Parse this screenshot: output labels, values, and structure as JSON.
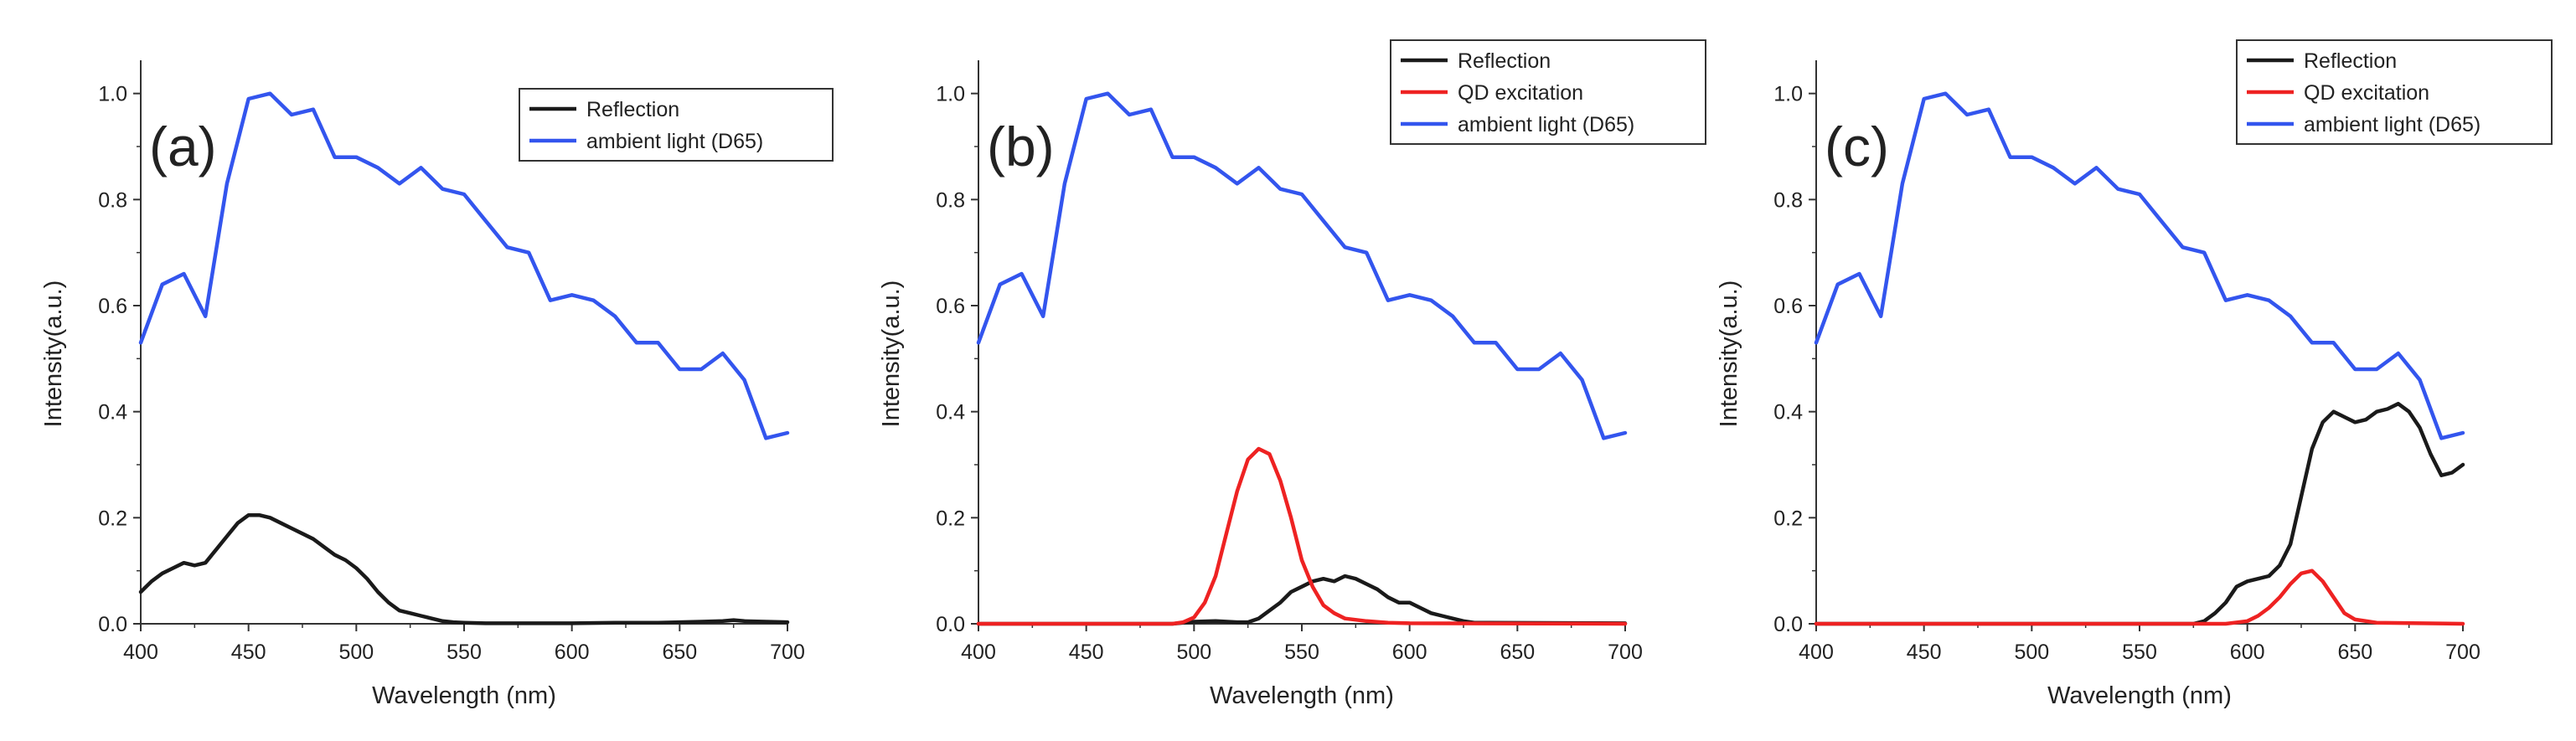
{
  "chart_data": [
    {
      "type": "line",
      "panel_label": "(a)",
      "xlabel": "Wavelength (nm)",
      "ylabel": "Intensity(a.u.)",
      "xlim": [
        400,
        700
      ],
      "ylim": [
        0,
        1.05
      ],
      "xticks": [
        400,
        450,
        500,
        550,
        600,
        650,
        700
      ],
      "yticks": [
        "0.0",
        "0.2",
        "0.4",
        "0.6",
        "0.8",
        "1.0"
      ],
      "series": [
        {
          "name": "Reflection",
          "color": "#1a1a1a",
          "x": [
            400,
            405,
            410,
            415,
            420,
            425,
            430,
            435,
            440,
            445,
            450,
            455,
            460,
            465,
            470,
            475,
            480,
            485,
            490,
            495,
            500,
            505,
            510,
            515,
            520,
            525,
            530,
            535,
            540,
            545,
            550,
            560,
            580,
            600,
            620,
            640,
            650,
            660,
            670,
            675,
            680,
            690,
            700
          ],
          "y": [
            0.06,
            0.08,
            0.095,
            0.105,
            0.115,
            0.11,
            0.115,
            0.14,
            0.165,
            0.19,
            0.205,
            0.205,
            0.2,
            0.19,
            0.18,
            0.17,
            0.16,
            0.145,
            0.13,
            0.12,
            0.105,
            0.085,
            0.06,
            0.04,
            0.025,
            0.02,
            0.015,
            0.01,
            0.005,
            0.003,
            0.002,
            0.001,
            0.001,
            0.001,
            0.002,
            0.002,
            0.003,
            0.004,
            0.005,
            0.007,
            0.005,
            0.004,
            0.003
          ]
        },
        {
          "name": "ambient light (D65)",
          "color": "#3355ee",
          "x": [
            400,
            410,
            420,
            430,
            440,
            450,
            460,
            470,
            480,
            490,
            500,
            510,
            520,
            530,
            540,
            550,
            560,
            570,
            580,
            590,
            600,
            610,
            620,
            630,
            640,
            650,
            660,
            670,
            680,
            690,
            700
          ],
          "y": [
            0.53,
            0.64,
            0.66,
            0.58,
            0.83,
            0.99,
            1.0,
            0.96,
            0.97,
            0.88,
            0.88,
            0.86,
            0.83,
            0.86,
            0.82,
            0.81,
            0.76,
            0.71,
            0.7,
            0.61,
            0.62,
            0.61,
            0.58,
            0.53,
            0.53,
            0.48,
            0.48,
            0.51,
            0.46,
            0.35,
            0.36
          ]
        }
      ]
    },
    {
      "type": "line",
      "panel_label": "(b)",
      "xlabel": "Wavelength (nm)",
      "ylabel": "Intensity(a.u.)",
      "xlim": [
        400,
        700
      ],
      "ylim": [
        0,
        1.05
      ],
      "xticks": [
        400,
        450,
        500,
        550,
        600,
        650,
        700
      ],
      "yticks": [
        "0.0",
        "0.2",
        "0.4",
        "0.6",
        "0.8",
        "1.0"
      ],
      "series": [
        {
          "name": "Reflection",
          "color": "#1a1a1a",
          "x": [
            400,
            490,
            500,
            510,
            520,
            525,
            530,
            535,
            540,
            545,
            550,
            555,
            560,
            565,
            570,
            575,
            580,
            585,
            590,
            595,
            600,
            605,
            610,
            615,
            620,
            625,
            630,
            700
          ],
          "y": [
            0,
            0,
            0.004,
            0.005,
            0.003,
            0.003,
            0.01,
            0.025,
            0.04,
            0.06,
            0.07,
            0.08,
            0.085,
            0.08,
            0.09,
            0.085,
            0.075,
            0.065,
            0.05,
            0.04,
            0.04,
            0.03,
            0.02,
            0.015,
            0.01,
            0.005,
            0.002,
            0.001
          ]
        },
        {
          "name": "QD excitation",
          "color": "#ee2222",
          "x": [
            400,
            490,
            495,
            500,
            505,
            510,
            515,
            520,
            525,
            530,
            535,
            540,
            545,
            550,
            555,
            560,
            565,
            570,
            580,
            590,
            600,
            700
          ],
          "y": [
            0,
            0,
            0.003,
            0.012,
            0.04,
            0.09,
            0.17,
            0.25,
            0.31,
            0.33,
            0.32,
            0.27,
            0.2,
            0.12,
            0.07,
            0.035,
            0.02,
            0.01,
            0.005,
            0.002,
            0.001,
            0
          ]
        },
        {
          "name": "ambient light (D65)",
          "color": "#3355ee",
          "x": [
            400,
            410,
            420,
            430,
            440,
            450,
            460,
            470,
            480,
            490,
            500,
            510,
            520,
            530,
            540,
            550,
            560,
            570,
            580,
            590,
            600,
            610,
            620,
            630,
            640,
            650,
            660,
            670,
            680,
            690,
            700
          ],
          "y": [
            0.53,
            0.64,
            0.66,
            0.58,
            0.83,
            0.99,
            1.0,
            0.96,
            0.97,
            0.88,
            0.88,
            0.86,
            0.83,
            0.86,
            0.82,
            0.81,
            0.76,
            0.71,
            0.7,
            0.61,
            0.62,
            0.61,
            0.58,
            0.53,
            0.53,
            0.48,
            0.48,
            0.51,
            0.46,
            0.35,
            0.36
          ]
        }
      ]
    },
    {
      "type": "line",
      "panel_label": "(c)",
      "xlabel": "Wavelength (nm)",
      "ylabel": "Intensity(a.u.)",
      "xlim": [
        400,
        700
      ],
      "ylim": [
        0,
        1.05
      ],
      "xticks": [
        400,
        450,
        500,
        550,
        600,
        650,
        700
      ],
      "yticks": [
        "0.0",
        "0.2",
        "0.4",
        "0.6",
        "0.8",
        "1.0"
      ],
      "series": [
        {
          "name": "Reflection",
          "color": "#1a1a1a",
          "x": [
            400,
            575,
            580,
            585,
            590,
            595,
            600,
            605,
            610,
            615,
            620,
            625,
            630,
            635,
            640,
            645,
            650,
            655,
            660,
            665,
            670,
            675,
            680,
            685,
            690,
            695,
            700
          ],
          "y": [
            0,
            0,
            0.005,
            0.02,
            0.04,
            0.07,
            0.08,
            0.085,
            0.09,
            0.11,
            0.15,
            0.24,
            0.33,
            0.38,
            0.4,
            0.39,
            0.38,
            0.385,
            0.4,
            0.405,
            0.415,
            0.4,
            0.37,
            0.32,
            0.28,
            0.285,
            0.3
          ]
        },
        {
          "name": "QD excitation",
          "color": "#ee2222",
          "x": [
            400,
            590,
            600,
            605,
            610,
            615,
            620,
            625,
            630,
            635,
            640,
            645,
            650,
            660,
            700
          ],
          "y": [
            0,
            0,
            0.005,
            0.015,
            0.03,
            0.05,
            0.075,
            0.095,
            0.1,
            0.08,
            0.05,
            0.02,
            0.008,
            0.002,
            0
          ]
        },
        {
          "name": "ambient light (D65)",
          "color": "#3355ee",
          "x": [
            400,
            410,
            420,
            430,
            440,
            450,
            460,
            470,
            480,
            490,
            500,
            510,
            520,
            530,
            540,
            550,
            560,
            570,
            580,
            590,
            600,
            610,
            620,
            630,
            640,
            650,
            660,
            670,
            680,
            690,
            700
          ],
          "y": [
            0.53,
            0.64,
            0.66,
            0.58,
            0.83,
            0.99,
            1.0,
            0.96,
            0.97,
            0.88,
            0.88,
            0.86,
            0.83,
            0.86,
            0.82,
            0.81,
            0.76,
            0.71,
            0.7,
            0.61,
            0.62,
            0.61,
            0.58,
            0.53,
            0.53,
            0.48,
            0.48,
            0.51,
            0.46,
            0.35,
            0.36
          ]
        }
      ]
    }
  ]
}
